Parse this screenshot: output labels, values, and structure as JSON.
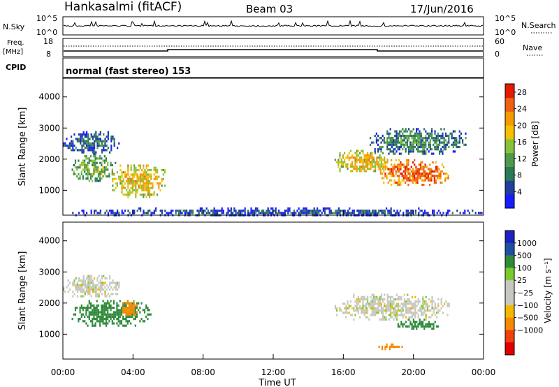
{
  "header": {
    "station": "Hankasalmi (fitACF)",
    "beam": "Beam 03",
    "date": "17/Jun/2016"
  },
  "strip": {
    "nsky_label": "N.Sky",
    "nsky_ticks": [
      "10^5",
      "10^0"
    ],
    "nsearch_label": "N.Search",
    "nsearch_ticks": [
      "10^5",
      "10^0"
    ],
    "freq_label_1": "Freq.",
    "freq_label_2": "[MHz]",
    "freq_ticks": [
      "18",
      "8"
    ],
    "nave_label": "Nave",
    "nave_ticks": [
      "60",
      "0"
    ],
    "cpid_label": "CPID",
    "cpid_text": "normal (fast stereo) 153"
  },
  "colors": {
    "power_scale": [
      "#1a1aff",
      "#1f3f9a",
      "#2a7a55",
      "#4f9a4a",
      "#86c23a",
      "#f5c000",
      "#f59a00",
      "#f06010",
      "#e61a00"
    ],
    "velocity_scale": [
      "#e00000",
      "#f04010",
      "#f58a00",
      "#f5b800",
      "#c8c8c0",
      "#c8c8c0",
      "#7acb2a",
      "#2f8a3a",
      "#1f4fa0",
      "#2020c0"
    ]
  },
  "chart_data": [
    {
      "type": "heatmap",
      "title": "Power",
      "xlabel": "Time UT",
      "ylabel": "Slant Range [km]",
      "x_ticks": [
        "00:00",
        "04:00",
        "08:00",
        "12:00",
        "16:00",
        "20:00",
        "00:00"
      ],
      "y_ticks": [
        "1000",
        "2000",
        "3000",
        "4000"
      ],
      "ylim": [
        200,
        4600
      ],
      "colorbar_label": "Power [dB]",
      "colorbar_ticks": [
        "4",
        "8",
        "12",
        "16",
        "20",
        "24",
        "28"
      ],
      "colorbar_range": [
        0,
        30
      ],
      "echo_regions": [
        {
          "t_start_h": 0.0,
          "t_end_h": 3.2,
          "range_km": [
            2200,
            2900
          ],
          "power_db": 8
        },
        {
          "t_start_h": 0.5,
          "t_end_h": 3.0,
          "range_km": [
            1300,
            2200
          ],
          "power_db": 14
        },
        {
          "t_start_h": 2.8,
          "t_end_h": 5.8,
          "range_km": [
            800,
            1900
          ],
          "power_db": 20
        },
        {
          "t_start_h": 15.5,
          "t_end_h": 18.5,
          "range_km": [
            1600,
            2300
          ],
          "power_db": 20
        },
        {
          "t_start_h": 18.0,
          "t_end_h": 22.0,
          "range_km": [
            1200,
            2000
          ],
          "power_db": 26
        },
        {
          "t_start_h": 17.5,
          "t_end_h": 23.0,
          "range_km": [
            2200,
            3000
          ],
          "power_db": 10
        },
        {
          "t_start_h": 0.0,
          "t_end_h": 24.0,
          "range_km": [
            200,
            450
          ],
          "power_db": 6
        }
      ]
    },
    {
      "type": "heatmap",
      "title": "Velocity",
      "xlabel": "Time UT",
      "ylabel": "Slant Range [km]",
      "x_ticks": [
        "00:00",
        "04:00",
        "08:00",
        "12:00",
        "16:00",
        "20:00",
        "00:00"
      ],
      "y_ticks": [
        "1000",
        "2000",
        "3000",
        "4000"
      ],
      "ylim": [
        200,
        4600
      ],
      "colorbar_label": "Velocity [m s⁻¹]",
      "colorbar_ticks": [
        "1000",
        "500",
        "100",
        "25",
        "−25",
        "−100",
        "−500",
        "−1000"
      ],
      "echo_regions": [
        {
          "t_start_h": 0.0,
          "t_end_h": 3.2,
          "range_km": [
            2200,
            2900
          ],
          "velocity_ms": 0
        },
        {
          "t_start_h": 0.5,
          "t_end_h": 5.0,
          "range_km": [
            1300,
            2100
          ],
          "velocity_ms": 200
        },
        {
          "t_start_h": 3.3,
          "t_end_h": 4.2,
          "range_km": [
            1600,
            2100
          ],
          "velocity_ms": -400
        },
        {
          "t_start_h": 15.5,
          "t_end_h": 22.0,
          "range_km": [
            1500,
            2300
          ],
          "velocity_ms": 0
        },
        {
          "t_start_h": 19.0,
          "t_end_h": 21.5,
          "range_km": [
            1200,
            1500
          ],
          "velocity_ms": 150
        },
        {
          "t_start_h": 18.0,
          "t_end_h": 19.5,
          "range_km": [
            550,
            700
          ],
          "velocity_ms": -300
        }
      ]
    }
  ]
}
